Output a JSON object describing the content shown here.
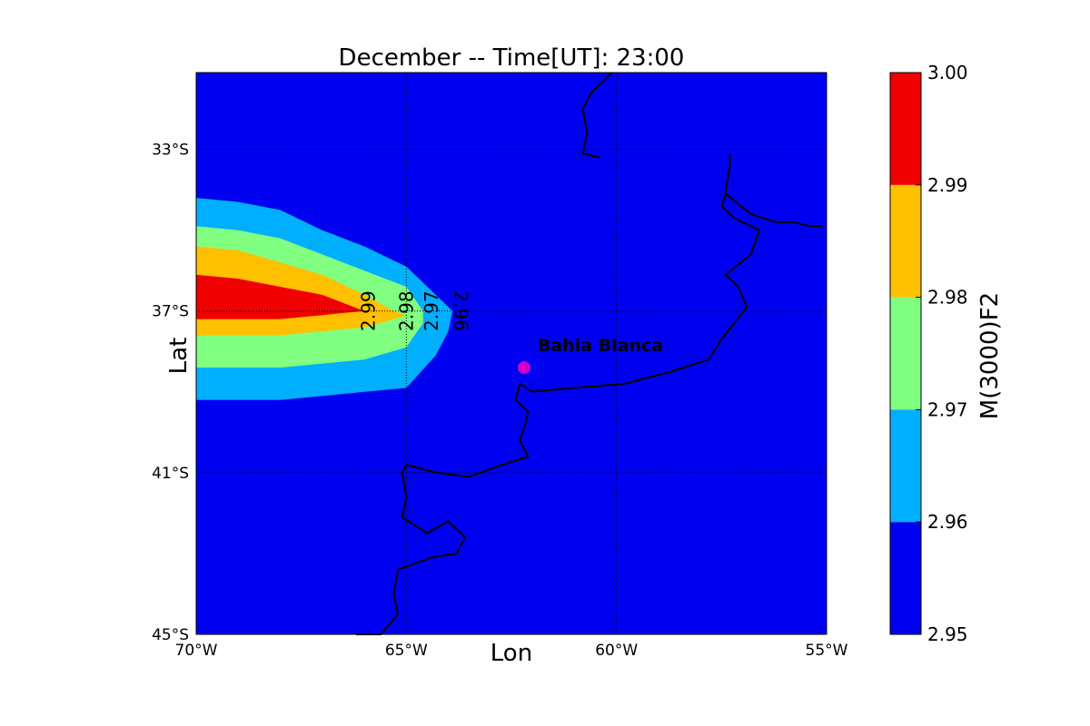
{
  "chart_data": {
    "type": "contour",
    "title": "December -- Time[UT]: 23:00",
    "xlabel": "Lon",
    "ylabel": "Lat",
    "xlim": [
      -70,
      -55
    ],
    "ylim": [
      -45,
      -31.1
    ],
    "x_ticks": [
      {
        "value": -70,
        "label": "70°W"
      },
      {
        "value": -65,
        "label": "65°W"
      },
      {
        "value": -60,
        "label": "60°W"
      },
      {
        "value": -55,
        "label": "55°W"
      }
    ],
    "y_ticks": [
      {
        "value": -33,
        "label": "33°S"
      },
      {
        "value": -37,
        "label": "37°S"
      },
      {
        "value": -41,
        "label": "41°S"
      },
      {
        "value": -45,
        "label": "45°S"
      }
    ],
    "grid": true,
    "colorbar": {
      "label": "M(3000)F2",
      "levels": [
        2.95,
        2.96,
        2.97,
        2.98,
        2.99,
        3.0
      ],
      "tick_labels": [
        "2.95",
        "2.96",
        "2.97",
        "2.98",
        "2.99",
        "3.00"
      ],
      "colors": [
        "#0000f0",
        "#00b0ff",
        "#80ff80",
        "#ffc000",
        "#f00000"
      ]
    },
    "contour_bands": [
      {
        "min": 2.96,
        "max": 2.97,
        "color": "#00b0ff",
        "boundary": [
          [
            -70,
            -34.2
          ],
          [
            -69,
            -34.3
          ],
          [
            -68,
            -34.5
          ],
          [
            -67,
            -35.0
          ],
          [
            -66,
            -35.4
          ],
          [
            -65,
            -35.9
          ],
          [
            -64.3,
            -36.6
          ],
          [
            -63.9,
            -37.0
          ],
          [
            -64.0,
            -37.5
          ],
          [
            -64.3,
            -38.1
          ],
          [
            -65,
            -38.9
          ],
          [
            -66,
            -39.0
          ],
          [
            -67,
            -39.1
          ],
          [
            -68,
            -39.2
          ],
          [
            -70,
            -39.2
          ]
        ]
      },
      {
        "min": 2.97,
        "max": 2.98,
        "color": "#80ff80",
        "boundary": [
          [
            -70,
            -34.9
          ],
          [
            -69,
            -35.0
          ],
          [
            -68,
            -35.2
          ],
          [
            -67,
            -35.6
          ],
          [
            -66,
            -36.0
          ],
          [
            -65,
            -36.4
          ],
          [
            -64.6,
            -37.0
          ],
          [
            -64.6,
            -37.3
          ],
          [
            -65,
            -37.9
          ],
          [
            -66,
            -38.2
          ],
          [
            -67,
            -38.3
          ],
          [
            -68,
            -38.4
          ],
          [
            -70,
            -38.4
          ]
        ]
      },
      {
        "min": 2.98,
        "max": 2.99,
        "color": "#ffc000",
        "boundary": [
          [
            -70,
            -35.4
          ],
          [
            -69,
            -35.5
          ],
          [
            -68,
            -35.8
          ],
          [
            -67,
            -36.1
          ],
          [
            -66,
            -36.6
          ],
          [
            -65.3,
            -37.0
          ],
          [
            -65.0,
            -37.1
          ],
          [
            -65.3,
            -37.2
          ],
          [
            -66,
            -37.4
          ],
          [
            -67,
            -37.5
          ],
          [
            -68,
            -37.6
          ],
          [
            -70,
            -37.6
          ]
        ]
      },
      {
        "min": 2.99,
        "max": 3.0,
        "color": "#f00000",
        "boundary": [
          [
            -70,
            -36.1
          ],
          [
            -69,
            -36.2
          ],
          [
            -68,
            -36.4
          ],
          [
            -67,
            -36.6
          ],
          [
            -66,
            -37.0
          ],
          [
            -67,
            -37.1
          ],
          [
            -68,
            -37.2
          ],
          [
            -69,
            -37.2
          ],
          [
            -70,
            -37.2
          ]
        ]
      }
    ],
    "contour_labels": [
      {
        "text": "2.99",
        "lon": -65.9,
        "lat": -37.0
      },
      {
        "text": "2.98",
        "lon": -65.0,
        "lat": -37.0
      },
      {
        "text": "2.97",
        "lon": -64.4,
        "lat": -37.0
      },
      {
        "text": "2.96",
        "lon": -63.7,
        "lat": -37.0
      }
    ],
    "station": {
      "name": "Bahia Blanca",
      "lon": -62.2,
      "lat": -38.4,
      "color": "#cc00cc"
    },
    "coastline": [
      [
        [
          -60.1,
          -31.1
        ],
        [
          -60.6,
          -31.6
        ],
        [
          -60.8,
          -32.0
        ],
        [
          -60.7,
          -32.6
        ],
        [
          -60.8,
          -33.1
        ],
        [
          -60.4,
          -33.2
        ]
      ],
      [
        [
          -57.3,
          -33.1
        ],
        [
          -57.3,
          -33.4
        ],
        [
          -57.4,
          -34.0
        ],
        [
          -57.4,
          -34.1
        ],
        [
          -56.8,
          -34.6
        ],
        [
          -56.2,
          -34.8
        ],
        [
          -55.8,
          -34.8
        ],
        [
          -55.4,
          -34.9
        ],
        [
          -55.1,
          -34.9
        ]
      ],
      [
        [
          -57.4,
          -34.1
        ],
        [
          -57.5,
          -34.4
        ],
        [
          -57.2,
          -34.7
        ],
        [
          -56.6,
          -35.0
        ],
        [
          -56.8,
          -35.6
        ],
        [
          -57.4,
          -36.1
        ],
        [
          -57.1,
          -36.4
        ],
        [
          -56.9,
          -36.9
        ],
        [
          -57.2,
          -37.3
        ],
        [
          -57.5,
          -37.7
        ],
        [
          -57.8,
          -38.2
        ],
        [
          -58.7,
          -38.5
        ],
        [
          -59.8,
          -38.8
        ],
        [
          -61.0,
          -38.9
        ],
        [
          -62.0,
          -39.0
        ],
        [
          -62.3,
          -38.8
        ],
        [
          -62.4,
          -39.2
        ],
        [
          -62.1,
          -39.5
        ],
        [
          -62.2,
          -39.9
        ],
        [
          -62.3,
          -40.2
        ],
        [
          -62.1,
          -40.6
        ],
        [
          -62.7,
          -40.8
        ],
        [
          -63.5,
          -41.1
        ],
        [
          -64.3,
          -41.0
        ],
        [
          -65.0,
          -40.8
        ],
        [
          -65.1,
          -41.0
        ],
        [
          -65.0,
          -41.6
        ],
        [
          -65.1,
          -42.1
        ],
        [
          -64.5,
          -42.5
        ],
        [
          -64.0,
          -42.2
        ],
        [
          -63.6,
          -42.6
        ],
        [
          -63.8,
          -43.0
        ],
        [
          -64.4,
          -43.1
        ],
        [
          -65.2,
          -43.4
        ],
        [
          -65.3,
          -44.0
        ],
        [
          -65.2,
          -44.5
        ],
        [
          -65.6,
          -45.0
        ],
        [
          -66.2,
          -45.0
        ]
      ]
    ]
  }
}
